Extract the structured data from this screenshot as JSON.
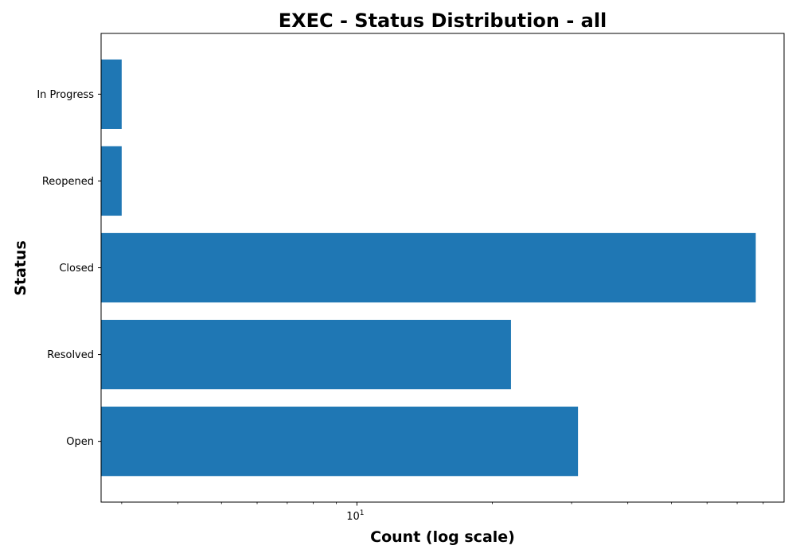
{
  "chart_data": {
    "type": "bar",
    "orientation": "horizontal",
    "title": "EXEC - Status Distribution - all",
    "xlabel": "Count (log scale)",
    "ylabel": "Status",
    "x_scale": "log",
    "xlim": [
      2.7,
      89
    ],
    "x_major_ticks": [
      {
        "value": 10,
        "base": "10",
        "exponent": "1"
      }
    ],
    "x_minor_ticks": [
      3,
      4,
      5,
      6,
      7,
      8,
      9,
      20,
      30,
      40,
      50,
      60,
      70,
      80
    ],
    "categories": [
      "Open",
      "Resolved",
      "Closed",
      "Reopened",
      "In Progress"
    ],
    "values": [
      31,
      22,
      77,
      3,
      3
    ],
    "bar_color": "#1f77b4",
    "grid": false,
    "legend": "none"
  }
}
